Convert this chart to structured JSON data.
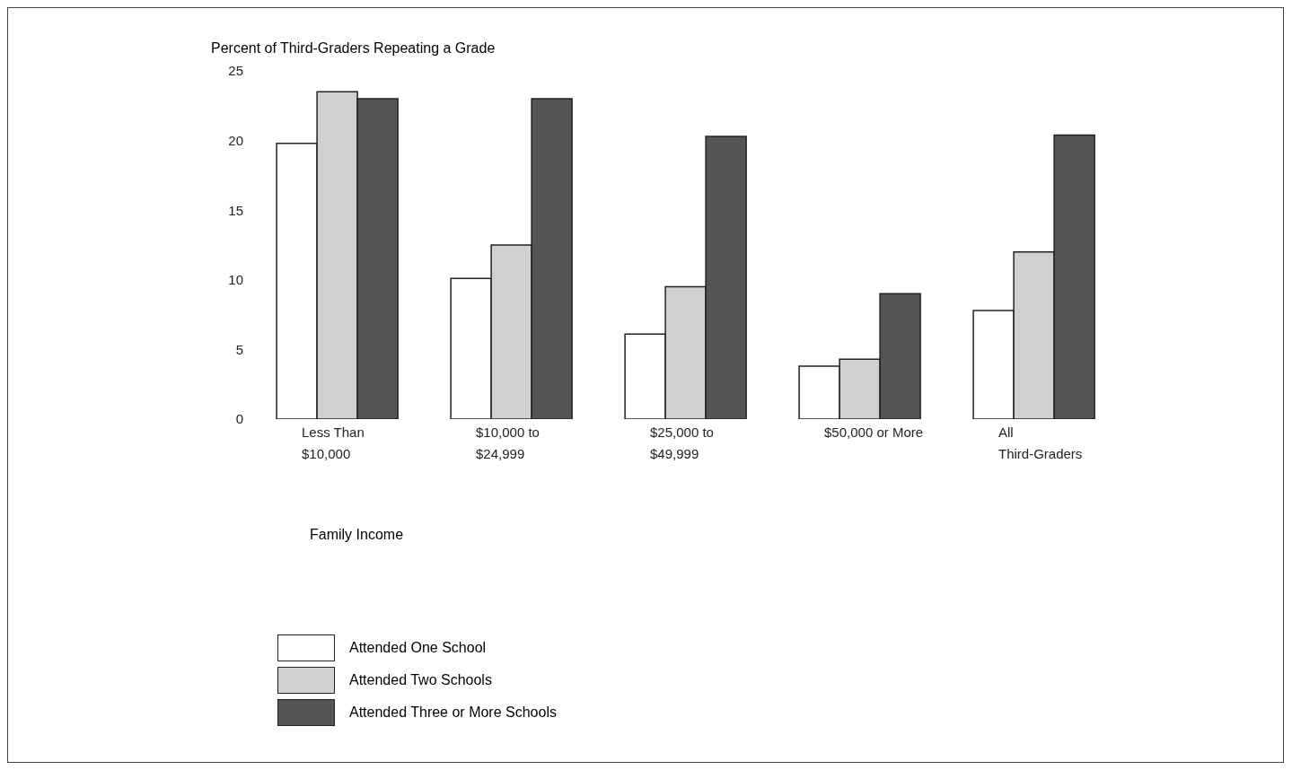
{
  "chart_data": {
    "type": "bar",
    "ylabel": "Percent of Third-Graders Repeating a Grade",
    "xlabel": "Family Income",
    "categories": [
      "Less Than\n$10,000",
      "$10,000 to\n$24,999",
      "$25,000 to\n$49,999",
      "$50,000 or More",
      "All\nThird-Graders"
    ],
    "series": [
      {
        "name": "Attended One School",
        "color": "#ffffff",
        "values": [
          19.8,
          10.1,
          6.1,
          3.8,
          7.8
        ]
      },
      {
        "name": "Attended Two Schools",
        "color": "#d0d0d0",
        "values": [
          23.5,
          12.5,
          9.5,
          4.3,
          12.0
        ]
      },
      {
        "name": "Attended Three or More Schools",
        "color": "#555555",
        "values": [
          23.0,
          23.0,
          20.3,
          9.0,
          20.4
        ]
      }
    ],
    "ylim": [
      0,
      25
    ],
    "yticks": [
      0,
      5,
      10,
      15,
      20,
      25
    ],
    "grid": false,
    "legend": "bottom left"
  }
}
